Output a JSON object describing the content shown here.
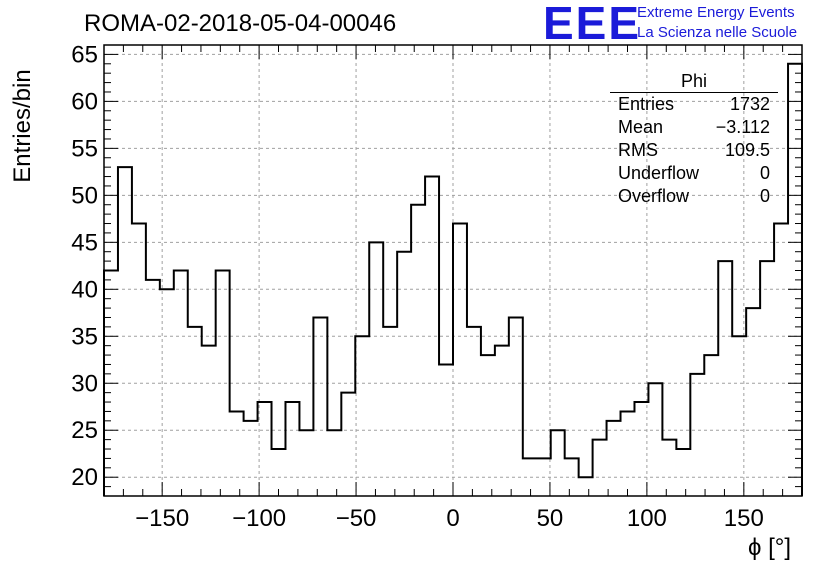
{
  "header": {
    "run_title": "ROMA-02-2018-05-04-00046",
    "logo_text": "EEE",
    "logo_line1": "Extreme Energy Events",
    "logo_line2": "La Scienza nelle Scuole"
  },
  "stats_box": {
    "title": "Phi",
    "rows": [
      {
        "label": "Entries",
        "value": "1732"
      },
      {
        "label": "Mean",
        "value": "−3.112"
      },
      {
        "label": "RMS",
        "value": "109.5"
      },
      {
        "label": "Underflow",
        "value": "0"
      },
      {
        "label": "Overflow",
        "value": "0"
      }
    ]
  },
  "chart_data": {
    "type": "bar",
    "style": "step-histogram",
    "title": "ROMA-02-2018-05-04-00046",
    "xlabel": "ϕ [°]",
    "ylabel": "Entries/bin",
    "xlim": [
      -180,
      180
    ],
    "ylim": [
      18,
      66
    ],
    "grid": true,
    "xticks": [
      -150,
      -100,
      -50,
      0,
      50,
      100,
      150
    ],
    "xtick_labels": [
      "−150",
      "−100",
      "−50",
      "0",
      "50",
      "100",
      "150"
    ],
    "yticks": [
      20,
      25,
      30,
      35,
      40,
      45,
      50,
      55,
      60,
      65
    ],
    "bin_width": 7.2,
    "values": [
      42,
      53,
      47,
      41,
      40,
      42,
      36,
      34,
      42,
      27,
      26,
      28,
      23,
      28,
      25,
      37,
      25,
      29,
      35,
      45,
      36,
      44,
      49,
      52,
      32,
      47,
      36,
      33,
      34,
      37,
      22,
      22,
      25,
      22,
      20,
      24,
      26,
      27,
      28,
      30,
      24,
      23,
      31,
      33,
      43,
      35,
      38,
      43,
      47,
      64
    ],
    "colors": {
      "line": "#000000",
      "grid": "#a0a0a0",
      "logo": "#1b1bd9"
    }
  }
}
